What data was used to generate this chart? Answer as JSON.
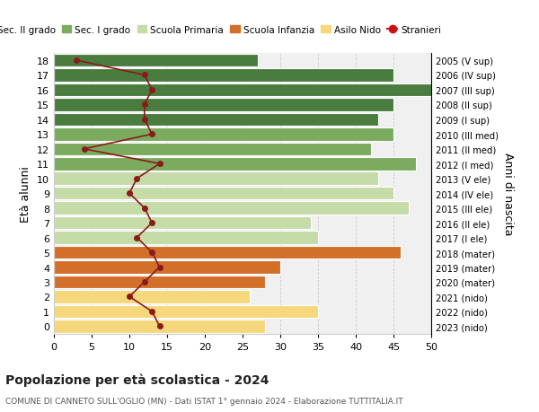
{
  "ages": [
    18,
    17,
    16,
    15,
    14,
    13,
    12,
    11,
    10,
    9,
    8,
    7,
    6,
    5,
    4,
    3,
    2,
    1,
    0
  ],
  "years": [
    "2005 (V sup)",
    "2006 (IV sup)",
    "2007 (III sup)",
    "2008 (II sup)",
    "2009 (I sup)",
    "2010 (III med)",
    "2011 (II med)",
    "2012 (I med)",
    "2013 (V ele)",
    "2014 (IV ele)",
    "2015 (III ele)",
    "2016 (II ele)",
    "2017 (I ele)",
    "2018 (mater)",
    "2019 (mater)",
    "2020 (mater)",
    "2021 (nido)",
    "2022 (nido)",
    "2023 (nido)"
  ],
  "bar_values": [
    27,
    45,
    50,
    45,
    43,
    45,
    42,
    48,
    43,
    45,
    47,
    34,
    35,
    46,
    30,
    28,
    26,
    35,
    28
  ],
  "bar_colors": [
    "#4a7c3f",
    "#4a7c3f",
    "#4a7c3f",
    "#4a7c3f",
    "#4a7c3f",
    "#7aab5e",
    "#7aab5e",
    "#7aab5e",
    "#c5dba8",
    "#c5dba8",
    "#c5dba8",
    "#c5dba8",
    "#c5dba8",
    "#d2702a",
    "#d2702a",
    "#d2702a",
    "#f5d87c",
    "#f5d87c",
    "#f5d87c"
  ],
  "stranieri": [
    3,
    12,
    13,
    12,
    12,
    13,
    4,
    14,
    11,
    10,
    12,
    13,
    11,
    13,
    14,
    12,
    10,
    13,
    14
  ],
  "stranieri_color": "#8b1a1a",
  "legend_labels": [
    "Sec. II grado",
    "Sec. I grado",
    "Scuola Primaria",
    "Scuola Infanzia",
    "Asilo Nido",
    "Stranieri"
  ],
  "legend_colors": [
    "#4a7c3f",
    "#7aab5e",
    "#c5dba8",
    "#d2702a",
    "#f5d87c",
    "#cc1111"
  ],
  "ylabel_left": "Età alunni",
  "ylabel_right": "Anni di nascita",
  "title": "Popolazione per età scolastica - 2024",
  "subtitle": "COMUNE DI CANNETO SULL'OGLIO (MN) - Dati ISTAT 1° gennaio 2024 - Elaborazione TUTTITALIA.IT",
  "xlim": [
    0,
    50
  ],
  "xticks": [
    0,
    5,
    10,
    15,
    20,
    25,
    30,
    35,
    40,
    45,
    50
  ],
  "bg_color": "#ffffff",
  "bar_bg": "#f0f0f0",
  "grid_color": "#cccccc"
}
